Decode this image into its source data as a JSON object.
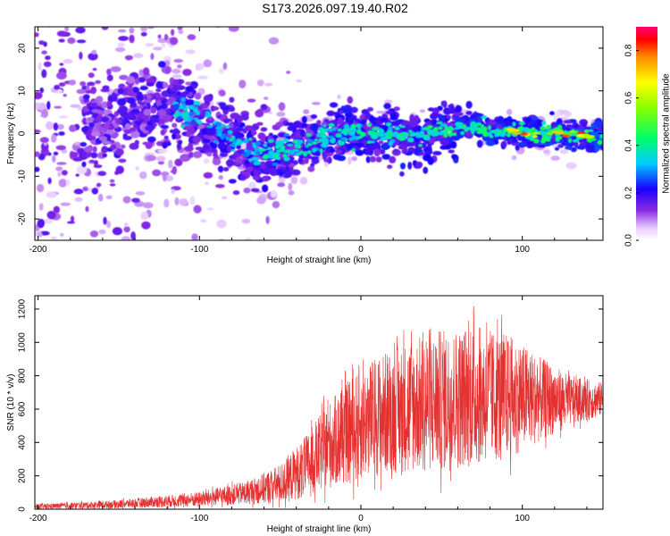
{
  "title": "S173.2026.097.19.40.R02",
  "colors": {
    "snr_line": "#e53030",
    "spectrogram_weak": "#d9c6f2",
    "spectrogram_mid": "#7a1fe0",
    "spectrogram_core": "#4b00d6"
  },
  "chart_data": [
    {
      "type": "heatmap",
      "name": "spectrogram",
      "xlabel": "Height of straight line (km)",
      "ylabel": "Frequency (Hz)",
      "xlim": [
        -202,
        150
      ],
      "ylim": [
        -25,
        25
      ],
      "x_ticks": [
        -200,
        -100,
        0,
        100
      ],
      "x_tick_labels": [
        "-200",
        "-100",
        "0",
        "100"
      ],
      "y_ticks": [
        -20,
        -10,
        0,
        10,
        20
      ],
      "y_tick_labels": [
        "-20",
        "-10",
        "0",
        "10",
        "20"
      ],
      "ridge_center_hz": [
        {
          "x": -200,
          "y": 2
        },
        {
          "x": -170,
          "y": 2
        },
        {
          "x": -150,
          "y": 4
        },
        {
          "x": -120,
          "y": 6
        },
        {
          "x": -100,
          "y": 4
        },
        {
          "x": -90,
          "y": 0
        },
        {
          "x": -75,
          "y": -3
        },
        {
          "x": -60,
          "y": -5
        },
        {
          "x": -45,
          "y": -4
        },
        {
          "x": -30,
          "y": -1
        },
        {
          "x": -15,
          "y": 0
        },
        {
          "x": 0,
          "y": 0
        },
        {
          "x": 20,
          "y": 0
        },
        {
          "x": 35,
          "y": -1
        },
        {
          "x": 50,
          "y": 1
        },
        {
          "x": 65,
          "y": 2
        },
        {
          "x": 80,
          "y": 1
        },
        {
          "x": 100,
          "y": 0
        },
        {
          "x": 125,
          "y": 0
        },
        {
          "x": 150,
          "y": -1
        }
      ],
      "colorbar": {
        "label": "Normalized spectral amplitude",
        "range": [
          0.0,
          0.9
        ],
        "ticks": [
          0.0,
          0.2,
          0.4,
          0.6,
          0.8
        ],
        "tick_labels": [
          "0.0",
          "0.2",
          "0.4",
          "0.6",
          "0.8"
        ]
      }
    },
    {
      "type": "line",
      "name": "snr",
      "xlabel": "Height of straight line (km)",
      "ylabel": "SNR (10 * v/v)",
      "xlim": [
        -202,
        150
      ],
      "ylim": [
        0,
        1280
      ],
      "x_ticks": [
        -200,
        -100,
        0,
        100
      ],
      "x_tick_labels": [
        "-200",
        "-100",
        "0",
        "100"
      ],
      "y_ticks": [
        0,
        200,
        400,
        600,
        800,
        1000,
        1200
      ],
      "y_tick_labels": [
        "0",
        "200",
        "400",
        "600",
        "800",
        "1000",
        "1200"
      ],
      "envelope": [
        {
          "x": -202,
          "mean": 15,
          "amp": 15
        },
        {
          "x": -150,
          "mean": 30,
          "amp": 25
        },
        {
          "x": -100,
          "mean": 60,
          "amp": 45
        },
        {
          "x": -70,
          "mean": 100,
          "amp": 70
        },
        {
          "x": -50,
          "mean": 150,
          "amp": 120
        },
        {
          "x": -35,
          "mean": 250,
          "amp": 180
        },
        {
          "x": -20,
          "mean": 380,
          "amp": 260
        },
        {
          "x": -5,
          "mean": 480,
          "amp": 320
        },
        {
          "x": 10,
          "mean": 560,
          "amp": 360
        },
        {
          "x": 30,
          "mean": 620,
          "amp": 400
        },
        {
          "x": 50,
          "mean": 650,
          "amp": 430
        },
        {
          "x": 70,
          "mean": 680,
          "amp": 420
        },
        {
          "x": 90,
          "mean": 680,
          "amp": 380
        },
        {
          "x": 110,
          "mean": 660,
          "amp": 260
        },
        {
          "x": 130,
          "mean": 650,
          "amp": 150
        },
        {
          "x": 150,
          "mean": 660,
          "amp": 100
        }
      ]
    }
  ]
}
